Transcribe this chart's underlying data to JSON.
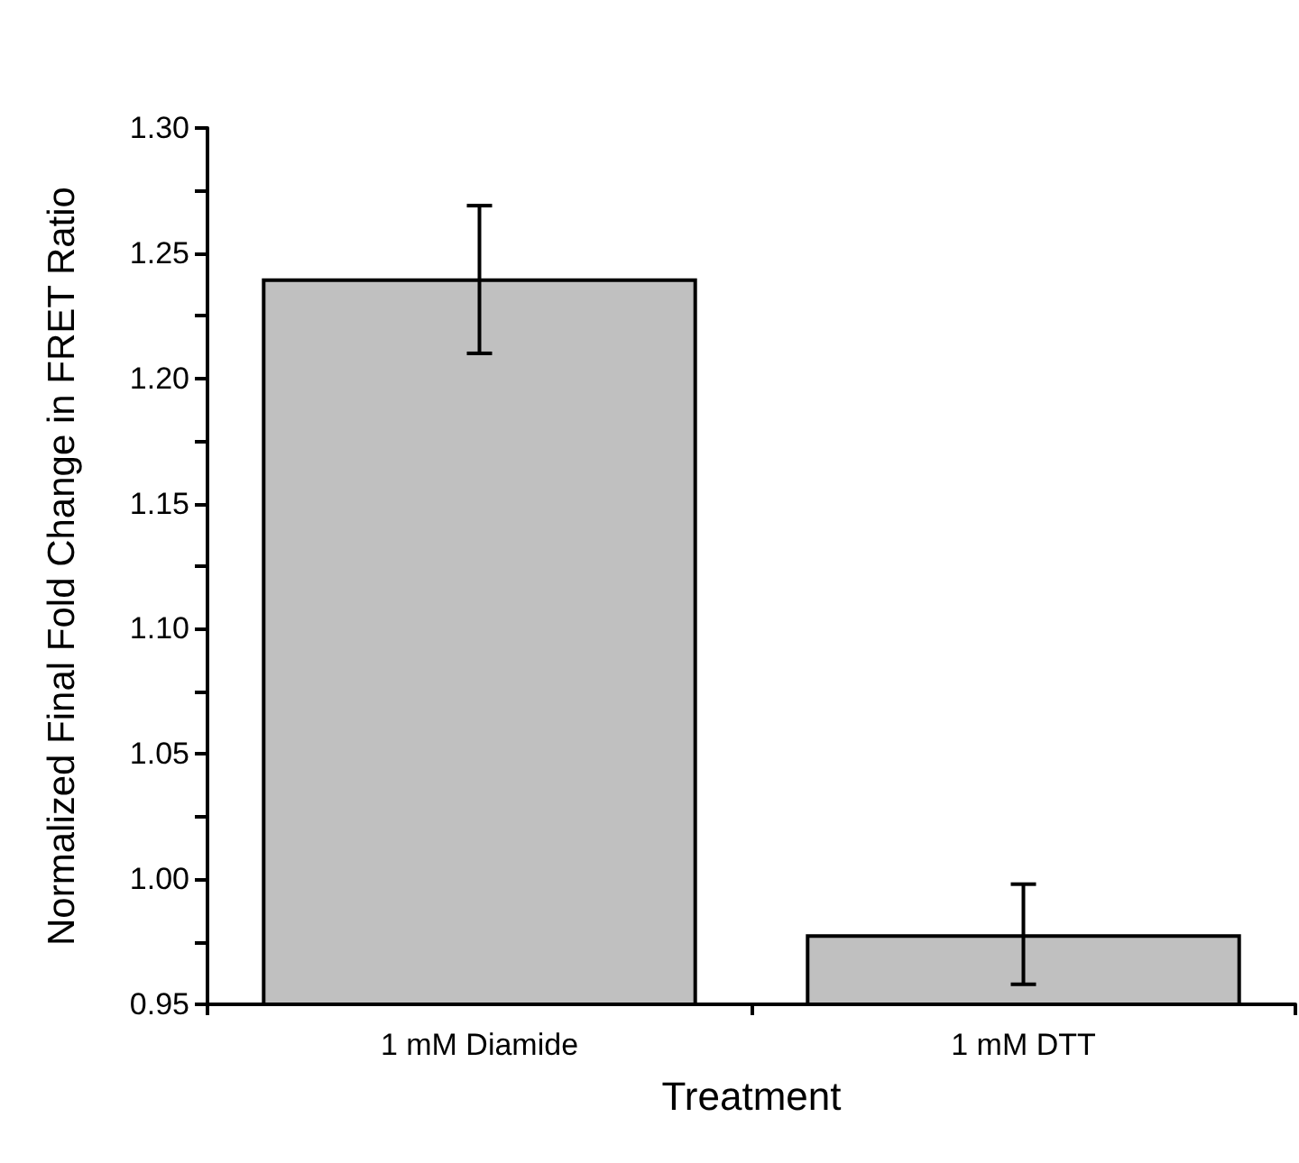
{
  "chart_data": {
    "type": "bar",
    "xlabel": "Treatment",
    "ylabel": "Normalized Final Fold Change in FRET Ratio",
    "categories": [
      "1 mM Diamide",
      "1 mM DTT"
    ],
    "values": [
      1.24,
      0.978
    ],
    "errors": [
      [
        1.21,
        1.269
      ],
      [
        0.958,
        0.998
      ]
    ],
    "color": "#c0c0c0",
    "ylim": [
      0.95,
      1.3
    ],
    "yticks": [
      {
        "value": 0.95,
        "label": "0.95"
      },
      {
        "value": 1.0,
        "label": "1.00"
      },
      {
        "value": 1.05,
        "label": "1.05"
      },
      {
        "value": 1.1,
        "label": "1.10"
      },
      {
        "value": 1.15,
        "label": "1.15"
      },
      {
        "value": 1.2,
        "label": "1.20"
      },
      {
        "value": 1.25,
        "label": "1.25"
      },
      {
        "value": 1.3,
        "label": "1.30"
      }
    ],
    "grid": false
  }
}
